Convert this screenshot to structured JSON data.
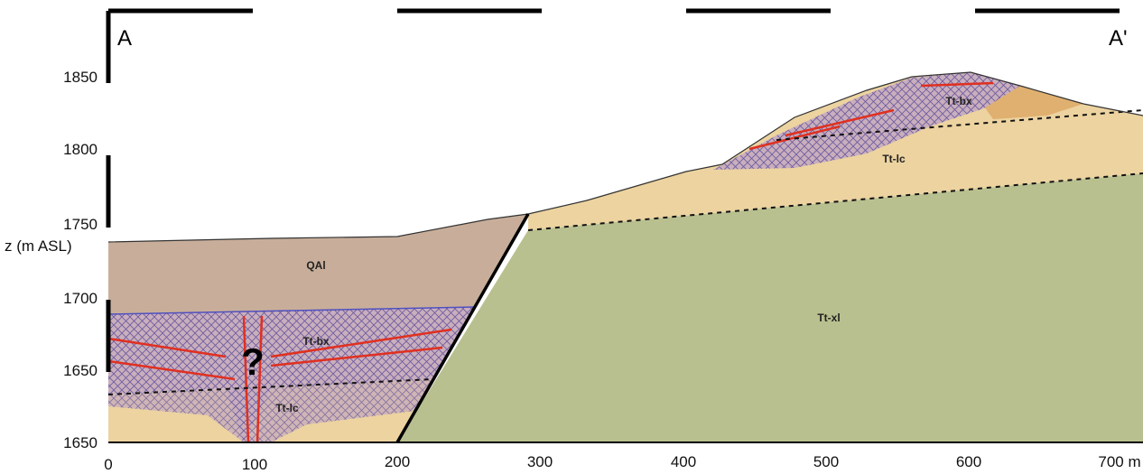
{
  "labels": {
    "section_start": "A",
    "section_end": "A'"
  },
  "y_axis": {
    "title": "z (m ASL)",
    "ticks": [
      "1850",
      "1800",
      "1750",
      "1700",
      "1650",
      "1650"
    ]
  },
  "x_axis": {
    "ticks": [
      "0",
      "100",
      "200",
      "300",
      "400",
      "500",
      "600",
      "700 m"
    ]
  },
  "units": [
    {
      "label": "QAl"
    },
    {
      "label": "Tt-bx"
    },
    {
      "label": "Tt-lc"
    },
    {
      "label": "Tt-xl"
    },
    {
      "label": "Tt-bx"
    },
    {
      "label": "Tt-lc"
    }
  ],
  "question": "?"
}
